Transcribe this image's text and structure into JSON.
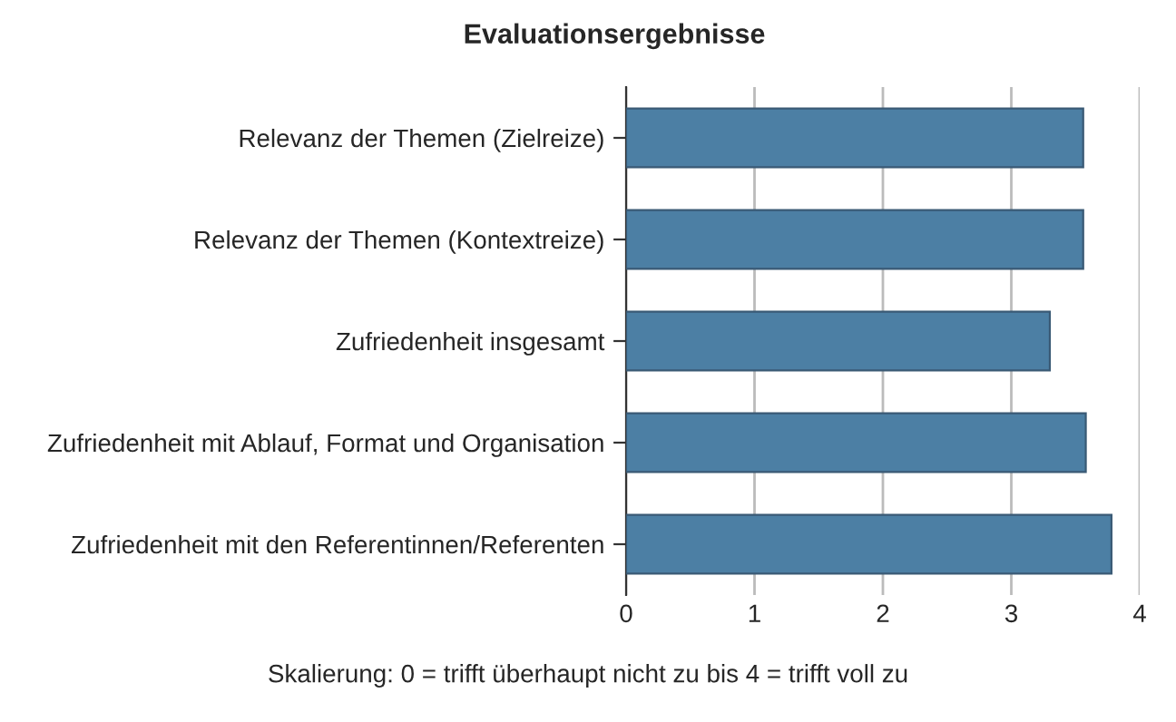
{
  "chart_data": {
    "type": "bar",
    "orientation": "horizontal",
    "title": "Evaluationsergebnisse",
    "categories": [
      "Relevanz der Themen (Zielreize)",
      "Relevanz der Themen (Kontextreize)",
      "Zufriedenheit insgesamt",
      "Zufriedenheit mit Ablauf, Format und Organisation",
      "Zufriedenheit mit den Referentinnen/Referenten"
    ],
    "values": [
      3.56,
      3.56,
      3.3,
      3.58,
      3.78
    ],
    "color": "#4c7fa4",
    "xlim": [
      0,
      4
    ],
    "xticks": [
      0,
      1,
      2,
      3,
      4
    ],
    "grid": "x",
    "annotations": [
      "Skalierung: 0 = trifft überhaupt nicht zu bis 4 = trifft voll zu"
    ]
  }
}
